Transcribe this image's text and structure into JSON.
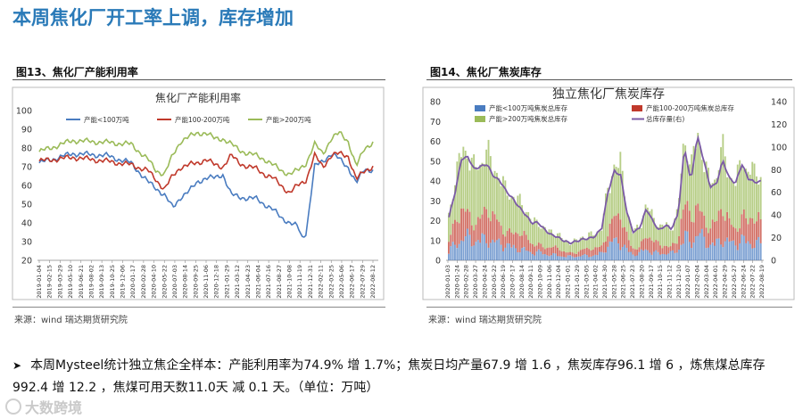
{
  "slide": {
    "title": "本周焦化厂开工率上调，库存增加",
    "bullet": "本周Mysteel统计独立焦企全样本：产能利用率为74.9% 增 1.7%；焦炭日均产量67.9 增 1.6 ，焦炭库存96.1 增 6 ，炼焦煤总库存 992.4 增 12.2 ，焦煤可用天数11.0天 减 0.1 天。（单位：万吨）",
    "watermark": "大数跨境"
  },
  "left": {
    "caption": "图13、焦化厂产能利用率",
    "source": "来源：wind   瑞达期货研究院"
  },
  "right": {
    "caption": "图14、焦化厂焦炭库存",
    "source": "来源：wind   瑞达期货研究院"
  },
  "colors": {
    "title": "#2a7ab8",
    "blue": "#4a7cc0",
    "red": "#c0392b",
    "green": "#9bbb59",
    "purple": "#7b5aa6",
    "orange": "#f0a070"
  },
  "chart_data": [
    {
      "type": "line",
      "title": "焦化厂产能利用率",
      "ylim": [
        20,
        100
      ],
      "yticks": [
        20,
        30,
        40,
        50,
        60,
        70,
        80,
        90,
        100
      ],
      "grid": false,
      "legend_position": "top",
      "x_ticks": [
        "2019-01-04",
        "2019-02-15",
        "2019-03-29",
        "2019-05-10",
        "2019-06-21",
        "2019-08-02",
        "2019-09-13",
        "2019-10-25",
        "2019-12-06",
        "2020-01-17",
        "2020-02-28",
        "2020-04-10",
        "2020-05-22",
        "2020-07-03",
        "2020-08-14",
        "2020-09-25",
        "2020-11-06",
        "2020-12-18",
        "2021-01-29",
        "2021-03-12",
        "2021-04-23",
        "2021-06-04",
        "2021-07-16",
        "2021-08-27",
        "2021-10-08",
        "2021-11-19",
        "2021-12-31",
        "2022-02-11",
        "2022-03-25",
        "2022-05-06",
        "2022-06-17",
        "2022-07-29",
        "2022-08-12"
      ],
      "series": [
        {
          "name": "产能<100万吨",
          "color": "#4a7cc0",
          "anchors": [
            [
              0,
              72
            ],
            [
              4,
              77
            ],
            [
              8,
              76
            ],
            [
              11,
              72
            ],
            [
              13,
              62
            ],
            [
              15,
              55
            ],
            [
              16,
              48
            ],
            [
              17,
              54
            ],
            [
              18,
              57
            ],
            [
              19,
              62
            ],
            [
              20,
              64
            ],
            [
              21,
              64
            ],
            [
              22,
              66
            ],
            [
              23,
              55
            ],
            [
              24,
              54
            ],
            [
              25,
              53
            ],
            [
              26,
              53
            ],
            [
              27,
              50
            ],
            [
              28,
              47
            ],
            [
              29,
              43
            ],
            [
              30,
              40
            ],
            [
              31,
              38
            ],
            [
              31.5,
              32
            ],
            [
              32,
              35
            ],
            [
              33,
              70
            ],
            [
              34,
              73
            ],
            [
              35,
              77
            ],
            [
              36,
              74
            ],
            [
              37,
              70
            ],
            [
              38,
              61
            ],
            [
              39,
              69
            ],
            [
              40,
              68
            ]
          ]
        },
        {
          "name": "产能100-200万吨",
          "color": "#c0392b",
          "anchors": [
            [
              0,
              73
            ],
            [
              4,
              75
            ],
            [
              8,
              73
            ],
            [
              11,
              71
            ],
            [
              13,
              68
            ],
            [
              14,
              63
            ],
            [
              15,
              58
            ],
            [
              16,
              65
            ],
            [
              17,
              70
            ],
            [
              18,
              71
            ],
            [
              19,
              72
            ],
            [
              20,
              74
            ],
            [
              21,
              71
            ],
            [
              22,
              70
            ],
            [
              23,
              76
            ],
            [
              24,
              72
            ],
            [
              25,
              70
            ],
            [
              26,
              69
            ],
            [
              27,
              66
            ],
            [
              28,
              64
            ],
            [
              29,
              60
            ],
            [
              30,
              56
            ],
            [
              31,
              60
            ],
            [
              32,
              63
            ],
            [
              33,
              76
            ],
            [
              34,
              70
            ],
            [
              35,
              76
            ],
            [
              36,
              77
            ],
            [
              37,
              76
            ],
            [
              38,
              63
            ],
            [
              39,
              68
            ],
            [
              40,
              70
            ]
          ]
        },
        {
          "name": "产能>200万吨",
          "color": "#9bbb59",
          "anchors": [
            [
              0,
              78
            ],
            [
              4,
              84
            ],
            [
              8,
              83
            ],
            [
              11,
              82
            ],
            [
              13,
              74
            ],
            [
              14,
              68
            ],
            [
              15,
              66
            ],
            [
              16,
              76
            ],
            [
              17,
              84
            ],
            [
              18,
              86
            ],
            [
              19,
              88
            ],
            [
              20,
              88
            ],
            [
              21,
              85
            ],
            [
              22,
              85
            ],
            [
              23,
              82
            ],
            [
              24,
              79
            ],
            [
              25,
              77
            ],
            [
              26,
              76
            ],
            [
              27,
              74
            ],
            [
              28,
              71
            ],
            [
              29,
              68
            ],
            [
              30,
              66
            ],
            [
              31,
              68
            ],
            [
              32,
              72
            ],
            [
              33,
              82
            ],
            [
              34,
              77
            ],
            [
              35,
              85
            ],
            [
              36,
              88
            ],
            [
              37,
              84
            ],
            [
              38,
              70
            ],
            [
              39,
              80
            ],
            [
              40,
              83
            ]
          ]
        }
      ]
    },
    {
      "type": "bar+line",
      "title": "独立焦化厂焦炭库存",
      "ylim_left": [
        0,
        80
      ],
      "yticks_left": [
        0,
        10,
        20,
        30,
        40,
        50,
        60,
        70,
        80
      ],
      "ylim_right": [
        0,
        140
      ],
      "yticks_right": [
        0,
        20,
        40,
        60,
        80,
        100,
        120,
        140
      ],
      "grid": false,
      "legend_position": "top",
      "x_ticks": [
        "2020-01-03",
        "2020-01-24",
        "2020-02-28",
        "2020-03-27",
        "2020-04-24",
        "2020-05-22",
        "2020-06-19",
        "2020-07-17",
        "2020-08-14",
        "2020-09-11",
        "2020-10-09",
        "2020-11-06",
        "2020-12-04",
        "2021-01-01",
        "2021-01-29",
        "2021-03-05",
        "2021-04-02",
        "2021-04-30",
        "2021-05-28",
        "2021-06-25",
        "2021-07-23",
        "2021-08-20",
        "2021-09-17",
        "2021-10-15",
        "2021-11-12",
        "2021-12-10",
        "2022-01-07",
        "2022-02-04",
        "2022-03-04",
        "2022-04-01",
        "2022-04-29",
        "2022-05-27",
        "2022-06-24",
        "2022-07-22",
        "2022-08-19"
      ],
      "bar_series": [
        {
          "name": "产能<100万吨焦炭总库存",
          "color": "#4a7cc0",
          "axis": "left"
        },
        {
          "name": "产能100-200万吨焦炭总库存",
          "color": "#c0392b",
          "axis": "left"
        },
        {
          "name": "产能>200万吨焦炭总库存",
          "color": "#9bbb59",
          "axis": "left"
        }
      ],
      "line_series": {
        "name": "总库存量(右)",
        "color": "#7b5aa6",
        "axis": "right",
        "anchors": [
          [
            0,
            38
          ],
          [
            1,
            60
          ],
          [
            2,
            90
          ],
          [
            3,
            92
          ],
          [
            4,
            80
          ],
          [
            5,
            82
          ],
          [
            6,
            85
          ],
          [
            7,
            75
          ],
          [
            8,
            70
          ],
          [
            9,
            60
          ],
          [
            10,
            55
          ],
          [
            11,
            48
          ],
          [
            12,
            40
          ],
          [
            13,
            32
          ],
          [
            14,
            34
          ],
          [
            15,
            28
          ],
          [
            16,
            22
          ],
          [
            17,
            20
          ],
          [
            18,
            18
          ],
          [
            19,
            16
          ],
          [
            20,
            16
          ],
          [
            21,
            18
          ],
          [
            22,
            20
          ],
          [
            23,
            22
          ],
          [
            24,
            28
          ],
          [
            25,
            60
          ],
          [
            26,
            80
          ],
          [
            27,
            75
          ],
          [
            28,
            40
          ],
          [
            29,
            24
          ],
          [
            30,
            30
          ],
          [
            31,
            46
          ],
          [
            32,
            34
          ],
          [
            33,
            26
          ],
          [
            34,
            32
          ],
          [
            35,
            28
          ],
          [
            36,
            40
          ],
          [
            37,
            100
          ],
          [
            38,
            70
          ],
          [
            39,
            110
          ],
          [
            40,
            88
          ],
          [
            41,
            65
          ],
          [
            42,
            68
          ],
          [
            43,
            88
          ],
          [
            44,
            72
          ],
          [
            45,
            68
          ],
          [
            46,
            86
          ],
          [
            47,
            72
          ],
          [
            48,
            68
          ],
          [
            49,
            70
          ]
        ]
      }
    }
  ]
}
